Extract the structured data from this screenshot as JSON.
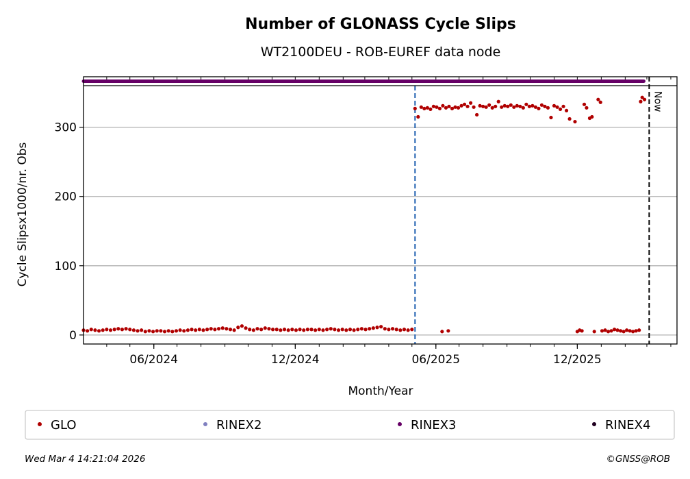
{
  "chart_data": {
    "type": "scatter",
    "title": "Number of GLONASS Cycle Slips",
    "subtitle": "WT2100DEU - ROB-EUREF data node",
    "xlabel": "Month/Year",
    "ylabel": "Cycle Slipsx1000/nr. Obs",
    "xlim": [
      "2024-03-02",
      "2026-04-09"
    ],
    "ylim": [
      -13,
      360
    ],
    "yticks": [
      0,
      100,
      200,
      300
    ],
    "xticks_major": [
      {
        "date": "2024-06-01",
        "label": "06/2024"
      },
      {
        "date": "2024-12-01",
        "label": "12/2024"
      },
      {
        "date": "2025-06-01",
        "label": "06/2025"
      },
      {
        "date": "2025-12-01",
        "label": "12/2025"
      }
    ],
    "grid": "horizontal",
    "legend_position": "bottom",
    "series": [
      {
        "name": "GLO",
        "color": "#b00000",
        "segments": [
          {
            "start": "2024-03-02",
            "step_days": 5,
            "values": [
              7,
              6,
              8,
              7,
              6,
              7,
              8,
              7,
              8,
              9,
              8,
              9,
              8,
              7,
              6,
              7,
              5,
              6,
              5,
              6,
              6,
              5,
              6,
              5,
              6,
              7,
              6,
              7,
              8,
              7,
              8,
              7,
              8,
              9,
              8,
              9,
              10,
              9,
              8,
              7,
              11,
              13,
              10,
              8,
              7,
              9,
              8,
              10,
              9,
              8,
              8,
              7,
              8,
              7,
              8,
              7,
              8,
              7,
              8,
              8,
              7,
              8,
              7,
              8,
              9,
              8,
              7,
              8,
              7,
              8,
              7,
              8,
              9,
              8,
              9,
              10,
              11,
              12,
              9,
              8,
              9,
              8,
              7,
              8,
              7,
              8
            ]
          },
          {
            "start": "2025-05-05",
            "step_days": 4,
            "values": [
              327,
              315,
              329,
              327,
              328,
              326,
              330,
              329,
              327,
              331,
              328,
              330,
              327,
              329,
              328,
              331,
              333,
              330,
              335,
              329,
              318,
              331,
              330,
              329,
              332,
              328,
              330,
              337,
              329,
              331,
              330,
              332,
              329,
              331,
              330,
              328,
              333,
              330,
              331,
              329,
              327,
              332,
              330,
              328,
              314,
              331,
              329,
              326,
              330,
              324,
              312
            ]
          },
          {
            "start": "2026-01-02",
            "step_days": 4,
            "values": [
              6,
              7,
              5,
              6,
              8,
              7,
              6,
              5,
              7,
              6,
              5,
              6,
              7
            ]
          }
        ],
        "points": [
          [
            "2025-06-09",
            5
          ],
          [
            "2025-06-17",
            6
          ],
          [
            "2025-11-28",
            308
          ],
          [
            "2025-12-01",
            5
          ],
          [
            "2025-12-04",
            7
          ],
          [
            "2025-12-07",
            6
          ],
          [
            "2025-12-10",
            333
          ],
          [
            "2025-12-13",
            328
          ],
          [
            "2025-12-17",
            313
          ],
          [
            "2025-12-20",
            315
          ],
          [
            "2025-12-23",
            5
          ],
          [
            "2025-12-28",
            340
          ],
          [
            "2025-12-31",
            336
          ],
          [
            "2026-02-21",
            337
          ],
          [
            "2026-02-23",
            343
          ],
          [
            "2026-02-26",
            340
          ]
        ]
      },
      {
        "name": "RINEX2",
        "color": "#8080c0"
      },
      {
        "name": "RINEX3",
        "color": "#660066",
        "availability": [
          "2024-03-02",
          "2026-02-25"
        ]
      },
      {
        "name": "RINEX4",
        "color": "#200020"
      }
    ],
    "annotations": [
      {
        "type": "vline",
        "date": "2025-05-05",
        "color": "#1f5fb0",
        "style": "dashed"
      },
      {
        "type": "vline",
        "date": "2026-03-04",
        "color": "#000000",
        "style": "dashed",
        "label": "Now"
      }
    ]
  },
  "footer": {
    "timestamp": "Wed Mar  4 14:21:04 2026",
    "copyright": "©GNSS@ROB"
  }
}
